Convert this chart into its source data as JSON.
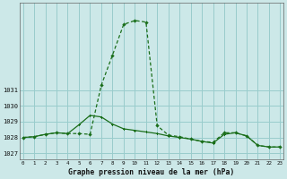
{
  "hours": [
    0,
    1,
    2,
    3,
    4,
    5,
    6,
    7,
    8,
    9,
    10,
    11,
    12,
    13,
    14,
    15,
    16,
    17,
    18,
    19,
    20,
    21,
    22,
    23
  ],
  "line1_spiky": [
    1028.0,
    1028.05,
    1028.2,
    1028.3,
    1028.25,
    1028.25,
    1028.2,
    1031.3,
    1033.2,
    1035.15,
    1035.4,
    1035.3,
    1028.75,
    1028.15,
    1028.05,
    1027.9,
    1027.75,
    1027.7,
    1028.3,
    1028.3,
    1028.1,
    1027.5,
    1027.4,
    1027.4
  ],
  "line2_smooth": [
    1028.0,
    1028.05,
    1028.2,
    1028.3,
    1028.25,
    1028.8,
    1029.4,
    1029.3,
    1028.85,
    1028.55,
    1028.45,
    1028.35,
    1028.25,
    1028.1,
    1028.0,
    1027.9,
    1027.75,
    1027.65,
    1028.2,
    1028.3,
    1028.1,
    1027.5,
    1027.4,
    1027.4
  ],
  "bg_color": "#cce8e8",
  "grid_color": "#99cccc",
  "line_color": "#1a6e1a",
  "xlabel": "Graphe pression niveau de la mer (hPa)",
  "yticks": [
    1027,
    1028,
    1029,
    1030,
    1031
  ],
  "ylim": [
    1026.6,
    1036.5
  ],
  "xlim": [
    -0.3,
    23.3
  ],
  "xtick_labels": [
    "0",
    "1",
    "2",
    "3",
    "4",
    "5",
    "6",
    "7",
    "8",
    "9",
    "10",
    "11",
    "12",
    "13",
    "14",
    "15",
    "16",
    "17",
    "18",
    "19",
    "20",
    "21",
    "22",
    "23"
  ]
}
